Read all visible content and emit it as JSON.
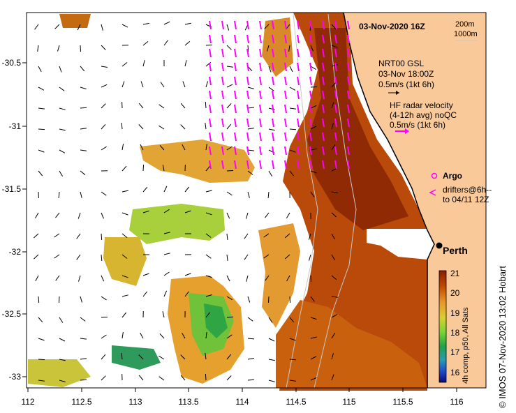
{
  "map": {
    "date_label": "03-Nov-2020 16Z",
    "contours": [
      "200m",
      "1000m"
    ],
    "current_legend": {
      "title": "NRT00 GSL",
      "time": "03-Nov 18:00Z",
      "scale": "0.5m/s (1kt 6h)"
    },
    "radar_legend": {
      "title": "HF radar velocity",
      "subtitle": "(4-12h avg) noQC",
      "scale": "0.5m/s (1kt 6h)"
    },
    "argo_label": "Argo",
    "drifters_label_1": "drifters@6h--",
    "drifters_label_2": "to 04/11 12Z",
    "city_label": "Perth",
    "colorbar": {
      "ticks": [
        "21",
        "20",
        "19",
        "18",
        "17",
        "16"
      ],
      "label": "4h comp, p50, All Sats",
      "colors": [
        "#8a1e00",
        "#c14a00",
        "#e7962a",
        "#d8cf30",
        "#78d432",
        "#20a04a",
        "#2a9ab0",
        "#1e4cc8",
        "#0a0a7a"
      ]
    },
    "axes": {
      "x_ticks": [
        "112",
        "112.5",
        "113",
        "113.5",
        "114",
        "114.5",
        "115",
        "115.5",
        "116"
      ],
      "y_ticks": [
        "-30.5",
        "-31",
        "-31.5",
        "-32",
        "-32.5",
        "-33"
      ]
    },
    "colors": {
      "land": "#f9c99a",
      "warm": "#b94a0a",
      "mid": "#e09a2e",
      "cool": "#8ccf3a",
      "radar": "#ff00ff"
    }
  },
  "footer": {
    "credit": "© IMOS 07-Nov-2020 13:02 Hobart"
  }
}
